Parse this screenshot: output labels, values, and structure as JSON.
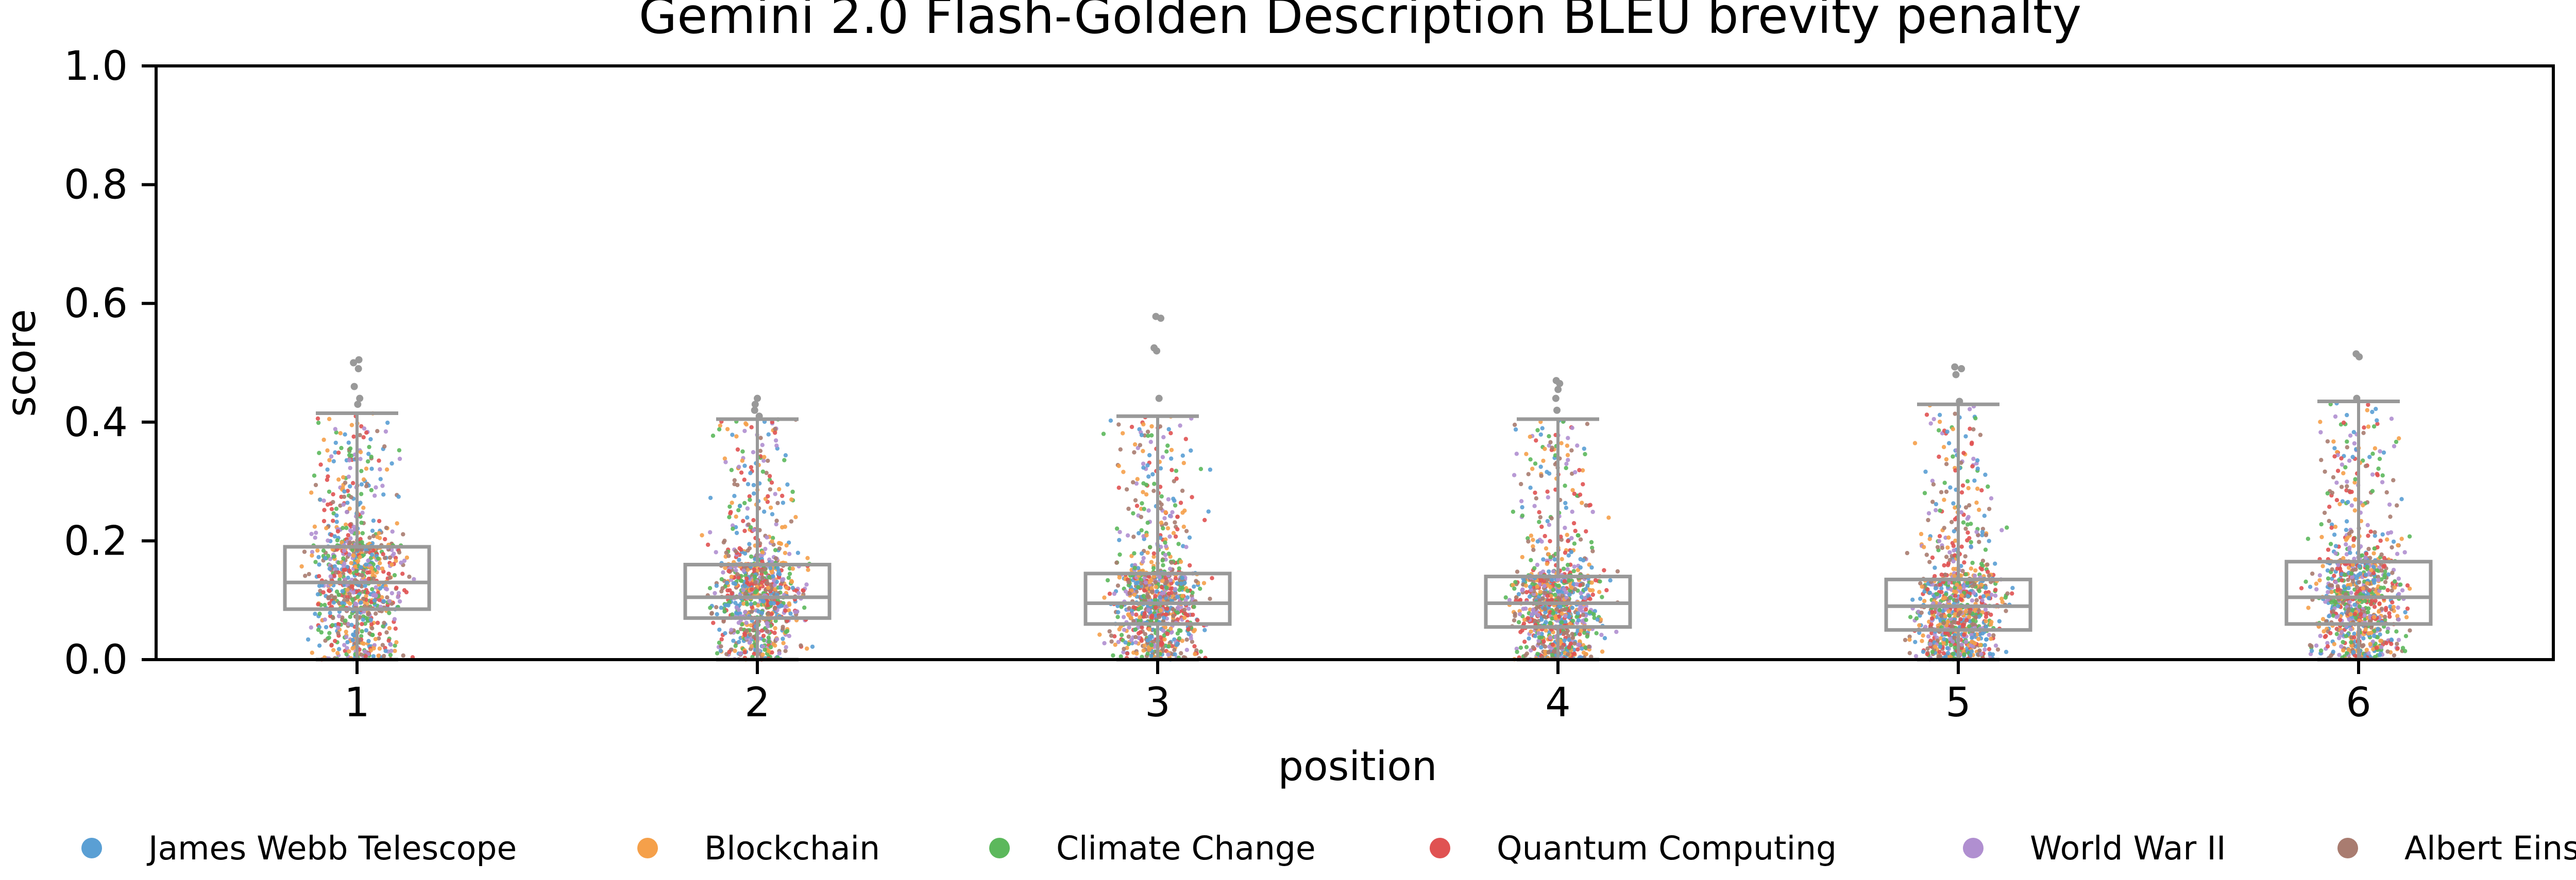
{
  "chart_data": {
    "type": "box",
    "title": "Gemini 2.0 Flash-Golden Description BLEU brevity penalty",
    "xlabel": "position",
    "ylabel": "score",
    "ylim": [
      0,
      1.0
    ],
    "yticks": [
      "0.0",
      "0.2",
      "0.4",
      "0.6",
      "0.8",
      "1.0"
    ],
    "categories": [
      "1",
      "2",
      "3",
      "4",
      "5",
      "6"
    ],
    "grid": false,
    "box_color": "#999999",
    "boxes": [
      {
        "position": "1",
        "whislo": 0.0,
        "q1": 0.085,
        "med": 0.13,
        "q3": 0.19,
        "whishi": 0.415,
        "fliers": [
          0.43,
          0.44,
          0.46,
          0.5,
          0.505,
          0.49
        ]
      },
      {
        "position": "2",
        "whislo": 0.0,
        "q1": 0.07,
        "med": 0.105,
        "q3": 0.16,
        "whishi": 0.405,
        "fliers": [
          0.42,
          0.43,
          0.44,
          0.41
        ]
      },
      {
        "position": "3",
        "whislo": 0.0,
        "q1": 0.06,
        "med": 0.095,
        "q3": 0.145,
        "whishi": 0.41,
        "fliers": [
          0.44,
          0.52,
          0.525,
          0.575,
          0.578
        ]
      },
      {
        "position": "4",
        "whislo": 0.0,
        "q1": 0.055,
        "med": 0.095,
        "q3": 0.14,
        "whishi": 0.405,
        "fliers": [
          0.42,
          0.44,
          0.455,
          0.465,
          0.47
        ]
      },
      {
        "position": "5",
        "whislo": 0.0,
        "q1": 0.05,
        "med": 0.09,
        "q3": 0.135,
        "whishi": 0.43,
        "fliers": [
          0.435,
          0.48,
          0.49,
          0.493
        ]
      },
      {
        "position": "6",
        "whislo": 0.0,
        "q1": 0.06,
        "med": 0.105,
        "q3": 0.165,
        "whishi": 0.435,
        "fliers": [
          0.44,
          0.51,
          0.515
        ]
      }
    ],
    "strip_series": [
      {
        "name": "James Webb Telescope",
        "color": "#5a9fd4"
      },
      {
        "name": "Blockchain",
        "color": "#f5a04a"
      },
      {
        "name": "Climate Change",
        "color": "#5cb85c"
      },
      {
        "name": "Quantum Computing",
        "color": "#e05252"
      },
      {
        "name": "World War II",
        "color": "#b08fd0"
      },
      {
        "name": "Albert Einstein",
        "color": "#a97c70"
      }
    ],
    "legend_position": "bottom"
  }
}
